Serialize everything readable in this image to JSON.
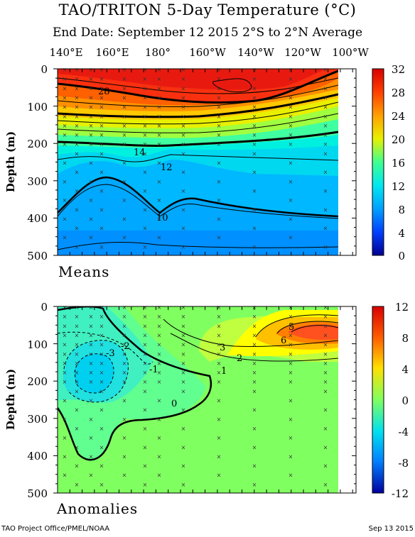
{
  "title": "TAO/TRITON 5-Day Temperature (°C)",
  "subtitle": "End Date: September 12 2015   2°S to 2°N Average",
  "longitude_labels": [
    "140°E",
    "160°E",
    "180°",
    "160°W",
    "140°W",
    "120°W",
    "100°W"
  ],
  "footer": {
    "left": "TAO Project Office/PMEL/NOAA",
    "right": "Sep 13 2015"
  },
  "chart_data": [
    {
      "type": "heatmap",
      "panel_label": "Means",
      "ylabel": "Depth (m)",
      "y_ticks": [
        0,
        100,
        200,
        300,
        400,
        500
      ],
      "ylim": [
        500,
        0
      ],
      "x_labels": [
        "140°E",
        "160°E",
        "180°",
        "160°W",
        "140°W",
        "120°W",
        "100°W"
      ],
      "colorbar": {
        "ticks": [
          "32",
          "28",
          "24",
          "20",
          "16",
          "12",
          "8",
          "4",
          "0"
        ],
        "range": [
          0,
          32
        ]
      },
      "contour_labels": [
        "28",
        "14",
        "12",
        "10"
      ],
      "isotherm_depths_m": {
        "x": [
          "137°E",
          "147°E",
          "157°E",
          "167°E",
          "177°E",
          "173°W",
          "163°W",
          "153°W",
          "143°W",
          "133°W",
          "123°W",
          "113°W",
          "103°W",
          "95°W"
        ],
        "28": [
          30,
          40,
          55,
          75,
          88,
          95,
          100,
          100,
          98,
          90,
          75,
          55,
          35,
          20
        ],
        "20": [
          150,
          158,
          165,
          170,
          172,
          172,
          170,
          165,
          160,
          150,
          140,
          130,
          120,
          110
        ],
        "14": [
          200,
          205,
          208,
          212,
          218,
          215,
          208,
          205,
          205,
          200,
          195,
          192,
          190,
          188
        ],
        "12": [
          295,
          265,
          262,
          285,
          305,
          270,
          250,
          262,
          280,
          292,
          305,
          308,
          310,
          310
        ],
        "10": [
          380,
          345,
          342,
          370,
          395,
          370,
          360,
          370,
          380,
          390,
          398,
          402,
          405,
          405
        ]
      }
    },
    {
      "type": "heatmap",
      "panel_label": "Anomalies",
      "ylabel": "Depth (m)",
      "y_ticks": [
        0,
        100,
        200,
        300,
        400,
        500
      ],
      "ylim": [
        500,
        0
      ],
      "x_labels": [
        "140°E",
        "160°E",
        "180°",
        "160°W",
        "140°W",
        "120°W",
        "100°W"
      ],
      "colorbar": {
        "ticks": [
          "12",
          "8",
          "4",
          "0",
          "-4",
          "-8",
          "-12"
        ],
        "range": [
          -12,
          12
        ]
      },
      "contour_labels": [
        "5",
        "6",
        "3",
        "2",
        "1",
        "0",
        "-1",
        "-2",
        "-3"
      ],
      "features": [
        {
          "name": "warm anomaly",
          "center": [
            "115°W",
            75
          ],
          "max": 6
        },
        {
          "name": "cool anomaly",
          "center": [
            "157°E",
            160
          ],
          "min": -3
        }
      ]
    }
  ]
}
